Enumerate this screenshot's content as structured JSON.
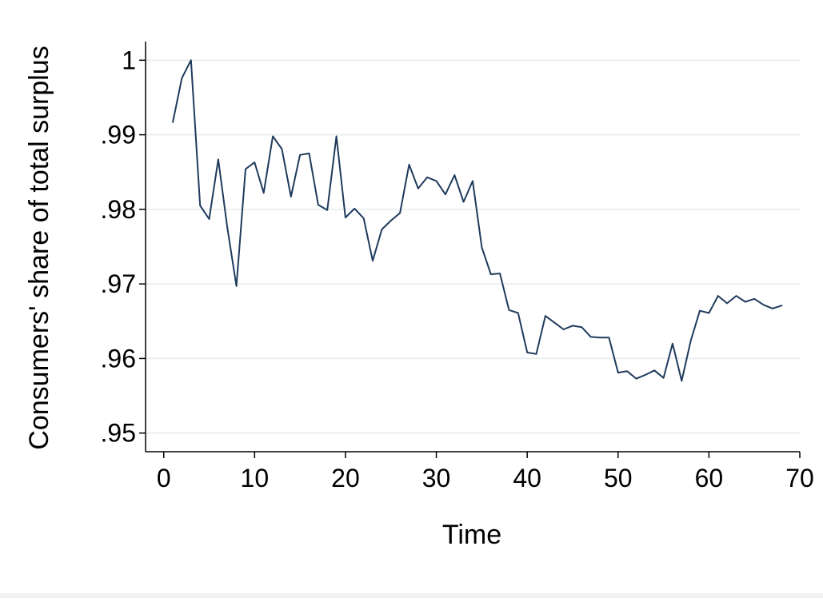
{
  "chart_data": {
    "type": "line",
    "xlabel": "Time",
    "ylabel": "Consumers' share of total surplus",
    "xlim": [
      -2,
      70
    ],
    "ylim": [
      0.9475,
      1.0025
    ],
    "x_ticks": [
      0,
      10,
      20,
      30,
      40,
      50,
      60,
      70
    ],
    "x_tick_labels": [
      "0",
      "10",
      "20",
      "30",
      "40",
      "50",
      "60",
      "70"
    ],
    "y_ticks": [
      0.95,
      0.96,
      0.97,
      0.98,
      0.99,
      1.0
    ],
    "y_tick_labels": [
      ".95",
      ".96",
      ".97",
      ".98",
      ".99",
      "1"
    ],
    "grid": "horizontal",
    "line_color": "#1f3b5c",
    "grid_color": "#e5ecee",
    "series": [
      {
        "x": [
          1,
          2,
          3,
          4,
          5,
          6,
          7,
          8,
          9,
          10,
          11,
          12,
          13,
          14,
          15,
          16,
          17,
          18,
          19,
          20,
          21,
          22,
          23,
          24,
          25,
          26,
          27,
          28,
          29,
          30,
          31,
          32,
          33,
          34,
          35,
          36,
          37,
          38,
          39,
          40,
          41,
          42,
          43,
          44,
          45,
          46,
          47,
          48,
          49,
          50,
          51,
          52,
          53,
          54,
          55,
          56,
          57,
          58,
          59,
          60,
          61,
          62,
          63,
          64,
          65,
          66,
          67,
          68
        ],
        "values": [
          0.9917,
          0.9976,
          1.0,
          0.9805,
          0.9787,
          0.9867,
          0.9775,
          0.9697,
          0.9854,
          0.9863,
          0.9822,
          0.9898,
          0.9881,
          0.9817,
          0.9873,
          0.9875,
          0.9806,
          0.9799,
          0.9898,
          0.9789,
          0.9801,
          0.9788,
          0.9731,
          0.9773,
          0.9785,
          0.9795,
          0.986,
          0.9828,
          0.9843,
          0.9838,
          0.982,
          0.9846,
          0.981,
          0.9838,
          0.9749,
          0.9713,
          0.9714,
          0.9665,
          0.9661,
          0.9608,
          0.9606,
          0.9657,
          0.9648,
          0.9639,
          0.9644,
          0.9642,
          0.9629,
          0.9628,
          0.9628,
          0.9581,
          0.9583,
          0.9573,
          0.9578,
          0.9584,
          0.9574,
          0.962,
          0.957,
          0.9624,
          0.9664,
          0.9661,
          0.9684,
          0.9674,
          0.9684,
          0.9676,
          0.968,
          0.9672,
          0.9667,
          0.9671
        ]
      }
    ]
  }
}
